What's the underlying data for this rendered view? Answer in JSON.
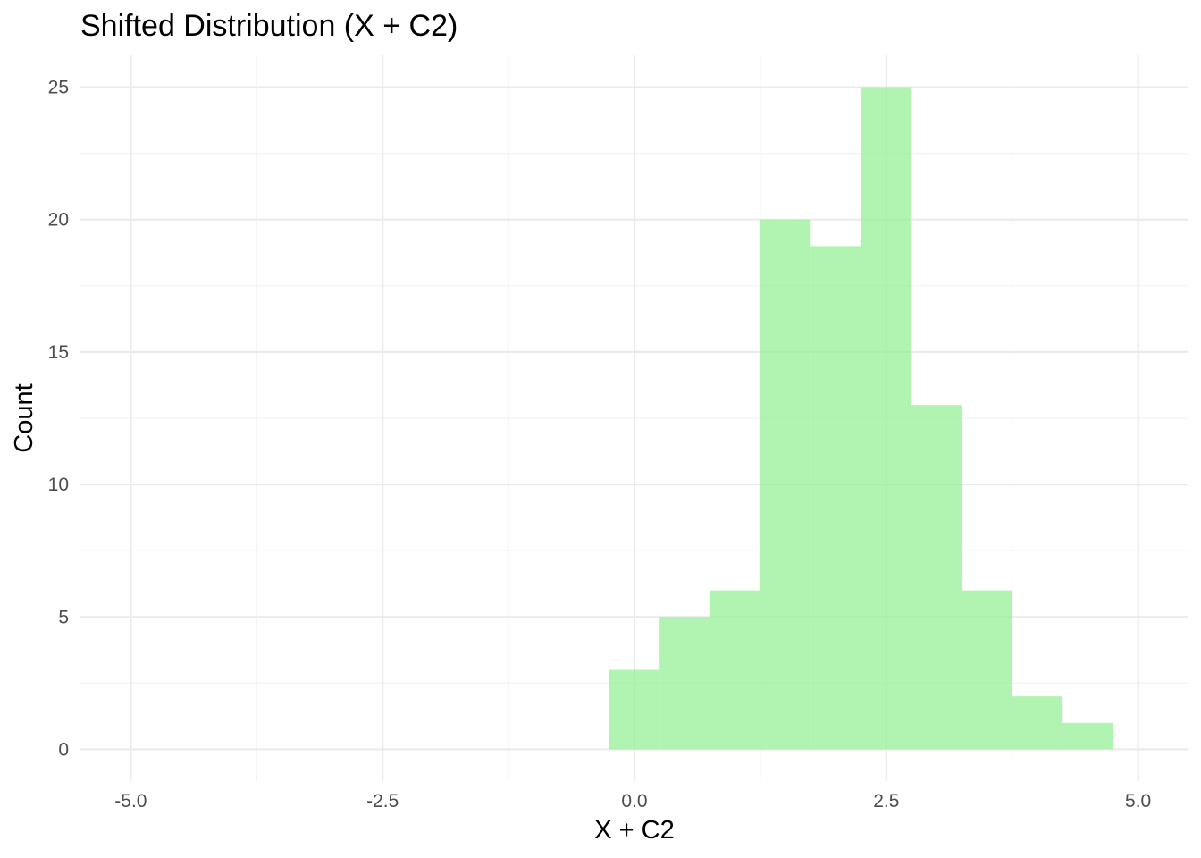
{
  "chart_data": {
    "type": "bar",
    "title": "Shifted Distribution (X + C2)",
    "xlabel": "X + C2",
    "ylabel": "Count",
    "xlim": [
      -5.5,
      5.5
    ],
    "ylim": [
      -1.2,
      26.2
    ],
    "x_ticks": [
      -5.0,
      -2.5,
      0.0,
      2.5,
      5.0
    ],
    "x_tick_labels": [
      "-5.0",
      "-2.5",
      "0.0",
      "2.5",
      "5.0"
    ],
    "y_ticks": [
      0,
      5,
      10,
      15,
      20,
      25
    ],
    "y_tick_labels": [
      "0",
      "5",
      "10",
      "15",
      "20",
      "25"
    ],
    "x_minor_ticks": [
      -3.75,
      -1.25,
      1.25,
      3.75
    ],
    "y_minor_ticks": [
      2.5,
      7.5,
      12.5,
      17.5,
      22.5
    ],
    "bin_width": 0.5,
    "bins": [
      {
        "start": -0.25,
        "end": 0.25,
        "count": 3
      },
      {
        "start": 0.25,
        "end": 0.75,
        "count": 5
      },
      {
        "start": 0.75,
        "end": 1.25,
        "count": 6
      },
      {
        "start": 1.25,
        "end": 1.75,
        "count": 20
      },
      {
        "start": 1.75,
        "end": 2.25,
        "count": 19
      },
      {
        "start": 2.25,
        "end": 2.75,
        "count": 25
      },
      {
        "start": 2.75,
        "end": 3.25,
        "count": 13
      },
      {
        "start": 3.25,
        "end": 3.75,
        "count": 6
      },
      {
        "start": 3.75,
        "end": 4.25,
        "count": 2
      },
      {
        "start": 4.25,
        "end": 4.75,
        "count": 1
      }
    ],
    "bar_color": "#90ee90",
    "bar_opacity": 0.7,
    "grid": true,
    "legend": "none"
  }
}
